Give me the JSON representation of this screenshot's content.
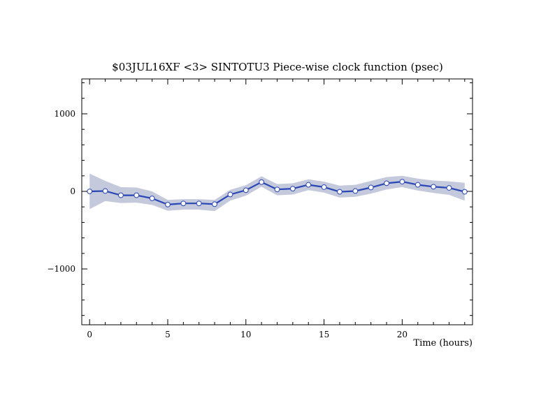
{
  "chart_data": {
    "type": "line",
    "title": "$03JUL16XF <3>  SINTOTU3  Piece-wise clock function (psec)",
    "xlabel": "Time (hours)",
    "ylabel": "",
    "xlim": [
      -0.5,
      24.5
    ],
    "ylim": [
      -1720,
      1450
    ],
    "x_ticks": [
      0,
      5,
      10,
      15,
      20
    ],
    "y_ticks": [
      -1000,
      0,
      1000
    ],
    "x_tick_labels": [
      "0",
      "5",
      "10",
      "15",
      "20"
    ],
    "y_tick_labels": [
      "−1000",
      "0",
      "1000"
    ],
    "grid": false,
    "series": [
      {
        "x": [
          0,
          1,
          2,
          3,
          4,
          5,
          6,
          7,
          8,
          9,
          10,
          11,
          12,
          13,
          14,
          15,
          16,
          17,
          18,
          19,
          20,
          21,
          22,
          23,
          24
        ],
        "values": [
          0,
          5,
          -50,
          -50,
          -90,
          -170,
          -155,
          -155,
          -165,
          -40,
          15,
          120,
          25,
          35,
          85,
          55,
          -5,
          5,
          50,
          105,
          125,
          85,
          60,
          45,
          -5
        ],
        "error_upper": [
          230,
          135,
          55,
          50,
          0,
          -110,
          -100,
          -100,
          -110,
          20,
          80,
          195,
          95,
          105,
          155,
          125,
          75,
          85,
          135,
          185,
          200,
          165,
          140,
          130,
          110
        ],
        "error_lower": [
          -230,
          -125,
          -150,
          -145,
          -175,
          -250,
          -235,
          -235,
          -255,
          -120,
          -55,
          60,
          -50,
          -40,
          15,
          -15,
          -80,
          -70,
          -30,
          25,
          55,
          10,
          -20,
          -45,
          -120
        ],
        "line_color": "#2846b4",
        "band_color": "#c5c9dc",
        "marker_fill": "#ffffff"
      }
    ]
  }
}
